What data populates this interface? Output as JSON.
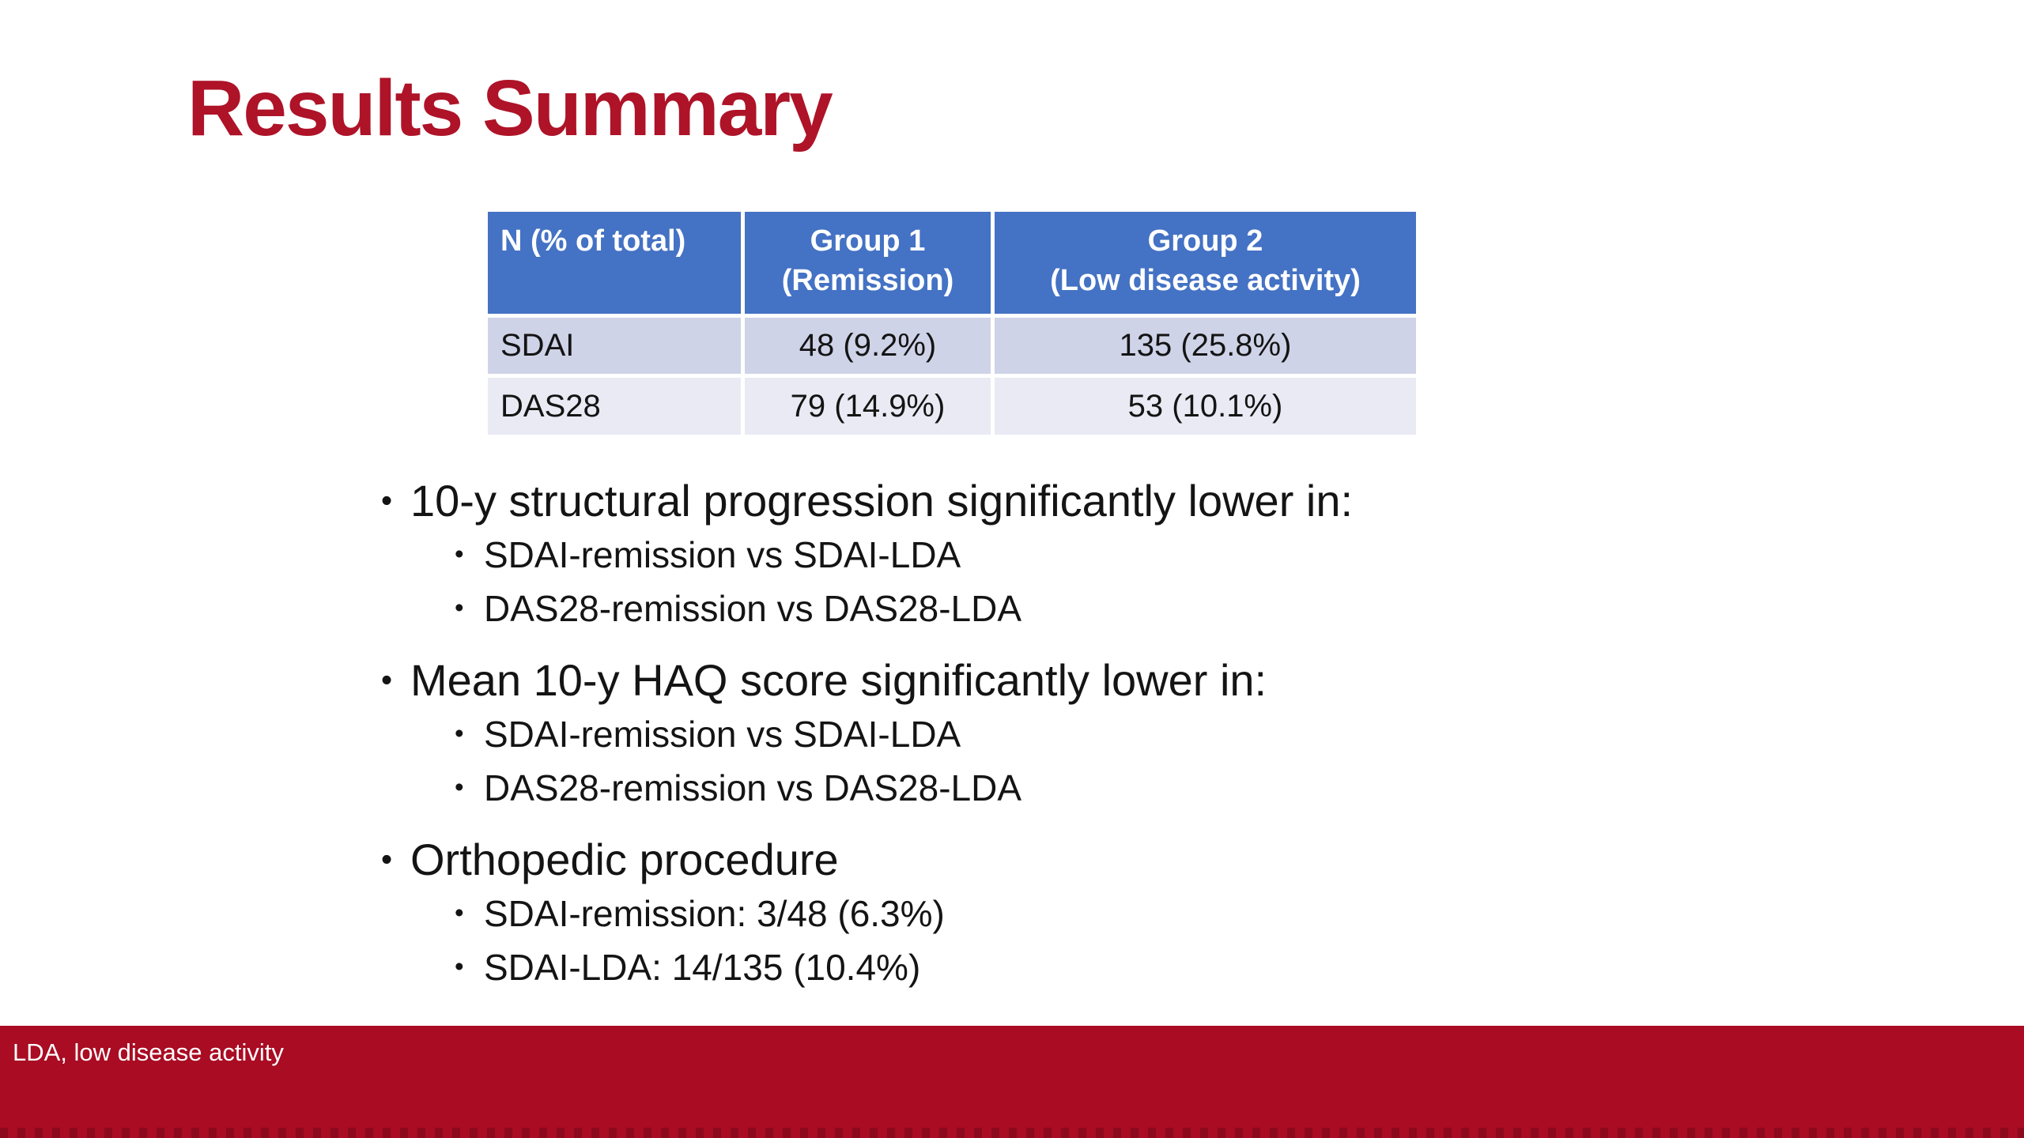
{
  "slide": {
    "title": "Results Summary",
    "footer_note": "LDA, low disease activity"
  },
  "bullet_glyph": "•",
  "table": {
    "header": [
      {
        "line1": "N (% of total)",
        "line2": ""
      },
      {
        "line1": "Group 1",
        "line2": "(Remission)"
      },
      {
        "line1": "Group 2",
        "line2": "(Low disease activity)"
      }
    ],
    "rows": [
      {
        "label": "SDAI",
        "group1": "48 (9.2%)",
        "group2": "135 (25.8%)"
      },
      {
        "label": "DAS28",
        "group1": "79 (14.9%)",
        "group2": "53 (10.1%)"
      }
    ]
  },
  "bullets": [
    {
      "text": "10-y structural progression significantly lower in:",
      "sub": [
        "SDAI-remission vs SDAI-LDA",
        "DAS28-remission vs DAS28-LDA"
      ]
    },
    {
      "text": "Mean 10-y HAQ score significantly lower in:",
      "sub": [
        "SDAI-remission vs SDAI-LDA",
        "DAS28-remission vs DAS28-LDA"
      ]
    },
    {
      "text": "Orthopedic procedure",
      "sub": [
        "SDAI-remission: 3/48 (6.3%)",
        "SDAI-LDA: 14/135 (10.4%)"
      ]
    }
  ],
  "colors": {
    "title_red": "#AE1328",
    "footer_bar_red": "#A90C23",
    "table_header_blue": "#4472C4",
    "table_row_odd": "#CFD3E8",
    "table_row_even": "#E9EAF4",
    "body_text": "#141414",
    "header_text": "#FFFFFF"
  }
}
